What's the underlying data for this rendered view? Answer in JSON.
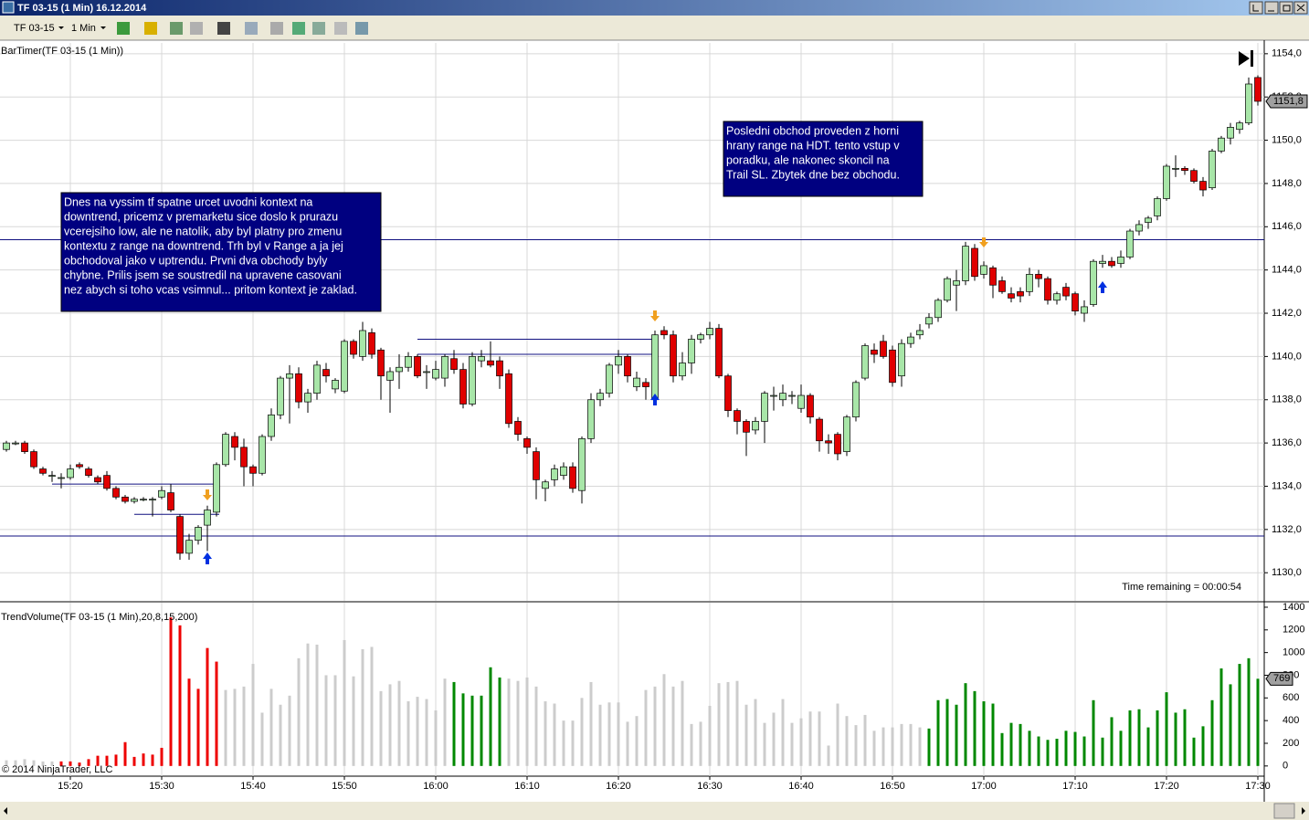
{
  "window": {
    "title": "TF 03-15 (1 Min)  16.12.2014",
    "copyright": "© 2014 NinjaTrader, LLC"
  },
  "toolbar": {
    "instrument": "TF 03-15",
    "interval": "1 Min"
  },
  "chart_data": [
    {
      "type": "candlestick",
      "label": "BarTimer(TF 03-15 (1 Min))",
      "timer": "Time remaining = 00:00:54",
      "up_color": "#a8e6a8",
      "down_color": "#e00000",
      "ylim": [
        1128.7,
        1154.5
      ],
      "yticks": [
        {
          "value": 1130,
          "label": "1130,0"
        },
        {
          "value": 1132,
          "label": "1132,0"
        },
        {
          "value": 1134,
          "label": "1134,0"
        },
        {
          "value": 1136,
          "label": "1136,0"
        },
        {
          "value": 1138,
          "label": "1138,0"
        },
        {
          "value": 1140,
          "label": "1140,0"
        },
        {
          "value": 1142,
          "label": "1142,0"
        },
        {
          "value": 1144,
          "label": "1144,0"
        },
        {
          "value": 1146,
          "label": "1146,0"
        },
        {
          "value": 1148,
          "label": "1148,0"
        },
        {
          "value": 1150,
          "label": "1150,0"
        },
        {
          "value": 1152,
          "label": "1152,0"
        },
        {
          "value": 1154,
          "label": "1154,0"
        }
      ],
      "last": {
        "value": 1151.8,
        "label": "1151,8"
      },
      "open": [
        1135.7,
        1136.0,
        1136.0,
        1135.6,
        1134.8,
        1134.5,
        1134.4,
        1134.4,
        1135.0,
        1134.8,
        1134.4,
        1134.5,
        1133.9,
        1133.5,
        1133.3,
        1133.4,
        1133.4,
        1133.5,
        1133.7,
        1132.6,
        1130.9,
        1131.5,
        1132.2,
        1132.8,
        1135.0,
        1136.3,
        1135.8,
        1134.9,
        1134.6,
        1136.3,
        1137.3,
        1139.0,
        1139.2,
        1137.9,
        1138.3,
        1139.4,
        1138.5,
        1138.4,
        1140.7,
        1140.0,
        1141.1,
        1140.3,
        1138.9,
        1139.3,
        1139.5,
        1140.0,
        1139.3,
        1139.0,
        1139.0,
        1139.9,
        1139.4,
        1137.8,
        1139.8,
        1139.8,
        1139.8,
        1139.2,
        1137.0,
        1136.2,
        1135.6,
        1133.9,
        1134.3,
        1134.5,
        1134.9,
        1133.8,
        1136.2,
        1138.0,
        1138.3,
        1139.6,
        1140.0,
        1138.6,
        1138.8,
        1138.0,
        1141.2,
        1141.0,
        1139.1,
        1139.7,
        1140.8,
        1141.0,
        1141.3,
        1139.1,
        1137.5,
        1137.0,
        1136.6,
        1137.0,
        1138.2,
        1138.0,
        1138.2,
        1137.6,
        1138.2,
        1137.1,
        1136.1,
        1136.4,
        1135.6,
        1137.2,
        1139.0,
        1140.3,
        1140.7,
        1140.3,
        1139.1,
        1140.6,
        1141.0,
        1141.5,
        1141.8,
        1142.6,
        1143.3,
        1143.5,
        1145.0,
        1143.8,
        1144.1,
        1143.5,
        1142.9,
        1143.0,
        1143.0,
        1143.8,
        1143.6,
        1142.6,
        1143.2,
        1142.9,
        1142.0,
        1142.4,
        1144.3,
        1144.4,
        1144.3,
        1144.6,
        1145.8,
        1146.2,
        1146.5,
        1147.3,
        1148.7,
        1148.7,
        1148.6,
        1148.1,
        1147.8,
        1149.5,
        1150.1,
        1150.5,
        1150.8,
        1152.9
      ],
      "high": [
        1136.1,
        1136.1,
        1136.1,
        1135.7,
        1134.9,
        1134.7,
        1134.6,
        1135.0,
        1135.1,
        1134.9,
        1134.5,
        1134.7,
        1134.0,
        1133.6,
        1133.5,
        1133.5,
        1133.5,
        1134.0,
        1134.1,
        1132.7,
        1131.8,
        1132.2,
        1133.1,
        1135.1,
        1136.5,
        1136.5,
        1136.2,
        1135.0,
        1136.4,
        1137.6,
        1139.1,
        1139.6,
        1139.5,
        1138.5,
        1139.8,
        1139.7,
        1139.0,
        1140.8,
        1140.8,
        1141.6,
        1141.3,
        1140.4,
        1139.5,
        1140.1,
        1140.2,
        1140.1,
        1139.6,
        1139.8,
        1140.1,
        1140.3,
        1139.7,
        1140.2,
        1140.3,
        1140.7,
        1140.0,
        1139.4,
        1137.2,
        1136.3,
        1135.8,
        1134.3,
        1135.0,
        1135.1,
        1135.1,
        1136.3,
        1138.3,
        1138.5,
        1139.7,
        1140.3,
        1140.1,
        1139.3,
        1139.0,
        1141.2,
        1141.4,
        1141.2,
        1140.2,
        1141.0,
        1141.1,
        1141.6,
        1141.5,
        1139.2,
        1137.6,
        1137.1,
        1137.2,
        1138.4,
        1138.6,
        1138.7,
        1138.4,
        1138.7,
        1138.3,
        1137.2,
        1136.4,
        1136.5,
        1137.3,
        1138.9,
        1140.6,
        1140.6,
        1141.0,
        1140.5,
        1140.8,
        1141.1,
        1141.5,
        1142.0,
        1142.7,
        1143.7,
        1144.0,
        1145.3,
        1145.2,
        1144.4,
        1144.2,
        1143.7,
        1143.2,
        1143.2,
        1144.1,
        1144.0,
        1143.7,
        1143.0,
        1143.4,
        1143.0,
        1142.6,
        1144.5,
        1144.7,
        1144.6,
        1144.9,
        1145.9,
        1146.3,
        1146.5,
        1147.4,
        1148.9,
        1149.3,
        1148.8,
        1148.7,
        1148.3,
        1149.6,
        1150.2,
        1150.8,
        1150.9,
        1152.9,
        1153.0
      ],
      "low": [
        1135.6,
        1135.9,
        1135.5,
        1134.8,
        1134.5,
        1134.2,
        1133.9,
        1134.3,
        1134.8,
        1134.4,
        1134.1,
        1133.8,
        1133.4,
        1133.2,
        1133.2,
        1133.3,
        1132.6,
        1133.4,
        1132.8,
        1130.6,
        1130.6,
        1131.3,
        1131.0,
        1132.6,
        1134.9,
        1135.2,
        1134.0,
        1134.0,
        1134.5,
        1136.1,
        1137.1,
        1136.9,
        1137.6,
        1137.4,
        1138.0,
        1138.8,
        1138.3,
        1138.3,
        1139.9,
        1139.8,
        1139.9,
        1138.0,
        1137.4,
        1138.5,
        1139.3,
        1139.0,
        1138.5,
        1138.9,
        1138.6,
        1139.2,
        1137.6,
        1137.7,
        1139.5,
        1139.5,
        1138.5,
        1136.7,
        1136.1,
        1135.5,
        1133.4,
        1133.3,
        1134.0,
        1134.3,
        1133.7,
        1133.2,
        1136.0,
        1137.7,
        1138.1,
        1139.2,
        1138.8,
        1138.4,
        1138.0,
        1137.9,
        1140.8,
        1138.8,
        1138.9,
        1139.2,
        1140.6,
        1140.8,
        1139.0,
        1137.2,
        1136.4,
        1135.4,
        1136.4,
        1136.0,
        1137.5,
        1137.7,
        1137.8,
        1137.4,
        1136.9,
        1135.6,
        1135.5,
        1135.2,
        1135.4,
        1137.0,
        1138.9,
        1139.7,
        1139.9,
        1138.6,
        1138.6,
        1140.4,
        1140.8,
        1141.3,
        1141.6,
        1142.5,
        1142.1,
        1143.3,
        1143.5,
        1143.6,
        1142.7,
        1142.9,
        1142.5,
        1142.5,
        1142.8,
        1143.2,
        1142.4,
        1142.4,
        1142.6,
        1141.9,
        1141.6,
        1142.3,
        1144.1,
        1144.1,
        1144.1,
        1144.5,
        1145.6,
        1145.9,
        1146.3,
        1147.2,
        1148.3,
        1148.4,
        1148.0,
        1147.4,
        1147.7,
        1149.4,
        1149.8,
        1150.3,
        1150.7,
        1151.6
      ],
      "close": [
        1136.0,
        1136.0,
        1135.6,
        1134.9,
        1134.6,
        1134.5,
        1134.4,
        1134.8,
        1134.9,
        1134.5,
        1134.2,
        1133.9,
        1133.5,
        1133.3,
        1133.4,
        1133.4,
        1133.4,
        1133.8,
        1132.9,
        1130.9,
        1131.5,
        1132.1,
        1132.9,
        1135.0,
        1136.4,
        1135.8,
        1134.9,
        1134.6,
        1136.3,
        1137.3,
        1139.0,
        1139.2,
        1137.9,
        1138.3,
        1139.6,
        1139.1,
        1138.9,
        1140.7,
        1140.1,
        1141.2,
        1140.1,
        1139.1,
        1139.3,
        1139.5,
        1140.0,
        1139.1,
        1139.3,
        1139.4,
        1140.0,
        1139.4,
        1137.8,
        1140.0,
        1140.0,
        1139.6,
        1139.1,
        1136.9,
        1136.4,
        1135.8,
        1134.3,
        1134.2,
        1134.8,
        1134.9,
        1133.9,
        1136.2,
        1138.0,
        1138.3,
        1139.6,
        1140.0,
        1139.1,
        1139.0,
        1138.6,
        1141.0,
        1141.0,
        1139.1,
        1139.7,
        1140.8,
        1141.0,
        1141.3,
        1139.1,
        1137.5,
        1137.0,
        1136.5,
        1137.0,
        1138.3,
        1138.2,
        1138.3,
        1138.2,
        1138.2,
        1137.2,
        1136.1,
        1136.0,
        1135.5,
        1137.2,
        1138.8,
        1140.5,
        1140.1,
        1140.0,
        1138.8,
        1140.6,
        1140.9,
        1141.2,
        1141.8,
        1142.6,
        1143.6,
        1143.5,
        1145.1,
        1143.7,
        1144.2,
        1143.3,
        1143.0,
        1142.7,
        1142.8,
        1143.8,
        1143.6,
        1142.6,
        1142.9,
        1142.8,
        1142.1,
        1142.3,
        1144.4,
        1144.4,
        1144.2,
        1144.6,
        1145.8,
        1146.1,
        1146.4,
        1147.3,
        1148.8,
        1148.7,
        1148.6,
        1148.1,
        1147.7,
        1149.5,
        1150.1,
        1150.6,
        1150.8,
        1152.6,
        1151.8
      ],
      "levels": [
        {
          "value": 1145.4
        },
        {
          "value": 1131.7
        },
        {
          "value": 1140.8,
          "x": [
            45,
            71
          ]
        },
        {
          "value": 1140.1,
          "x": [
            45,
            71
          ]
        },
        {
          "value": 1134.1,
          "x": [
            5,
            23
          ]
        },
        {
          "value": 1132.7,
          "x": [
            14,
            23
          ]
        }
      ],
      "annotations": [
        {
          "lines": [
            "Dnes na vyssim tf spatne urcet uvodni kontext na",
            "downtrend, pricemz v premarketu sice doslo k prurazu",
            "vcerejsiho low, ale ne natolik, aby byl platny pro zmenu",
            "kontextu z range na downtrend. Trh byl v Range a ja jej",
            "obchodoval jako v uptrendu. Prvni dva obchody byly",
            "chybne. Prilis jsem se soustredil na upravene casovani",
            "nez abych si toho vcas vsimnul... pritom kontext je zaklad."
          ]
        },
        {
          "lines": [
            "Posledni obchod proveden z horni",
            "hrany range na HDT. tento vstup v",
            "poradku, ale nakonec skoncil na",
            "Trail SL. Zbytek dne bez obchodu."
          ]
        }
      ]
    },
    {
      "type": "bar",
      "label": "TrendVolume(TF 03-15 (1 Min),20,8,15,200)",
      "categories": [
        null,
        null,
        null,
        null,
        null,
        null,
        null,
        "15:20",
        null,
        null,
        null,
        null,
        null,
        null,
        null,
        null,
        null,
        "15:30",
        null,
        null,
        null,
        null,
        null,
        null,
        null,
        null,
        null,
        "15:40",
        null,
        null,
        null,
        null,
        null,
        null,
        null,
        null,
        null,
        "15:50",
        null,
        null,
        null,
        null,
        null,
        null,
        null,
        null,
        null,
        "16:00",
        null,
        null,
        null,
        null,
        null,
        null,
        null,
        null,
        null,
        "16:10",
        null,
        null,
        null,
        null,
        null,
        null,
        null,
        null,
        null,
        "16:20",
        null,
        null,
        null,
        null,
        null,
        null,
        null,
        null,
        null,
        "16:30",
        null,
        null,
        null,
        null,
        null,
        null,
        null,
        null,
        null,
        "16:40",
        null,
        null,
        null,
        null,
        null,
        null,
        null,
        null,
        null,
        "16:50",
        null,
        null,
        null,
        null,
        null,
        null,
        null,
        null,
        null,
        "17:00",
        null,
        null,
        null,
        null,
        null,
        null,
        null,
        null,
        null,
        "17:10",
        null,
        null,
        null,
        null,
        null,
        null,
        null,
        null,
        null,
        "17:20",
        null,
        null,
        null,
        null,
        null,
        null,
        null,
        null,
        null,
        "17:30"
      ],
      "values": [
        50,
        50,
        60,
        50,
        40,
        40,
        40,
        40,
        30,
        60,
        90,
        90,
        100,
        210,
        80,
        110,
        100,
        160,
        1310,
        1240,
        770,
        680,
        1040,
        920,
        670,
        680,
        700,
        900,
        470,
        680,
        540,
        620,
        950,
        1080,
        1070,
        800,
        800,
        1110,
        790,
        1030,
        1050,
        660,
        720,
        750,
        570,
        610,
        590,
        490,
        770,
        740,
        640,
        620,
        620,
        870,
        780,
        770,
        750,
        780,
        700,
        570,
        550,
        400,
        400,
        600,
        740,
        540,
        560,
        560,
        390,
        440,
        670,
        700,
        810,
        700,
        750,
        370,
        390,
        530,
        730,
        740,
        750,
        540,
        590,
        380,
        470,
        590,
        380,
        420,
        480,
        480,
        180,
        550,
        440,
        360,
        450,
        310,
        340,
        340,
        370,
        370,
        340,
        330,
        580,
        590,
        540,
        730,
        660,
        570,
        550,
        290,
        380,
        370,
        310,
        260,
        230,
        240,
        310,
        300,
        260,
        580,
        250,
        430,
        310,
        490,
        500,
        340,
        490,
        650,
        470,
        500,
        250,
        350,
        580,
        860,
        720,
        900,
        950,
        769
      ],
      "colors": [
        "#ccc",
        "#ccc",
        "#ccc",
        "#ccc",
        "#ccc",
        "#ccc",
        "#e00",
        "#e00",
        "#e00",
        "#e00",
        "#e00",
        "#e00",
        "#e00",
        "#e00",
        "#e00",
        "#e00",
        "#e00",
        "#e00",
        "#e00",
        "#e00",
        "#e00",
        "#e00",
        "#e00",
        "#e00",
        "#ccc",
        "#ccc",
        "#ccc",
        "#ccc",
        "#ccc",
        "#ccc",
        "#ccc",
        "#ccc",
        "#ccc",
        "#ccc",
        "#ccc",
        "#ccc",
        "#ccc",
        "#ccc",
        "#ccc",
        "#ccc",
        "#ccc",
        "#ccc",
        "#ccc",
        "#ccc",
        "#ccc",
        "#ccc",
        "#ccc",
        "#ccc",
        "#ccc",
        "#080",
        "#080",
        "#080",
        "#080",
        "#080",
        "#080",
        "#ccc",
        "#ccc",
        "#ccc",
        "#ccc",
        "#ccc",
        "#ccc",
        "#ccc",
        "#ccc",
        "#ccc",
        "#ccc",
        "#ccc",
        "#ccc",
        "#ccc",
        "#ccc",
        "#ccc",
        "#ccc",
        "#ccc",
        "#ccc",
        "#ccc",
        "#ccc",
        "#ccc",
        "#ccc",
        "#ccc",
        "#ccc",
        "#ccc",
        "#ccc",
        "#ccc",
        "#ccc",
        "#ccc",
        "#ccc",
        "#ccc",
        "#ccc",
        "#ccc",
        "#ccc",
        "#ccc",
        "#ccc",
        "#ccc",
        "#ccc",
        "#ccc",
        "#ccc",
        "#ccc",
        "#ccc",
        "#ccc",
        "#ccc",
        "#ccc",
        "#ccc",
        "#080",
        "#080",
        "#080",
        "#080",
        "#080",
        "#080",
        "#080",
        "#080",
        "#080",
        "#080",
        "#080",
        "#080",
        "#080",
        "#080",
        "#080",
        "#080",
        "#080",
        "#080",
        "#080",
        "#080",
        "#080",
        "#080",
        "#080",
        "#080",
        "#080",
        "#080",
        "#080",
        "#080",
        "#080",
        "#080",
        "#080",
        "#080",
        "#080",
        "#080",
        "#080",
        "#080",
        "#080"
      ],
      "ylim": [
        -90,
        1440
      ],
      "yticks": [
        0,
        200,
        400,
        600,
        800,
        1000,
        1200,
        1400
      ]
    }
  ]
}
